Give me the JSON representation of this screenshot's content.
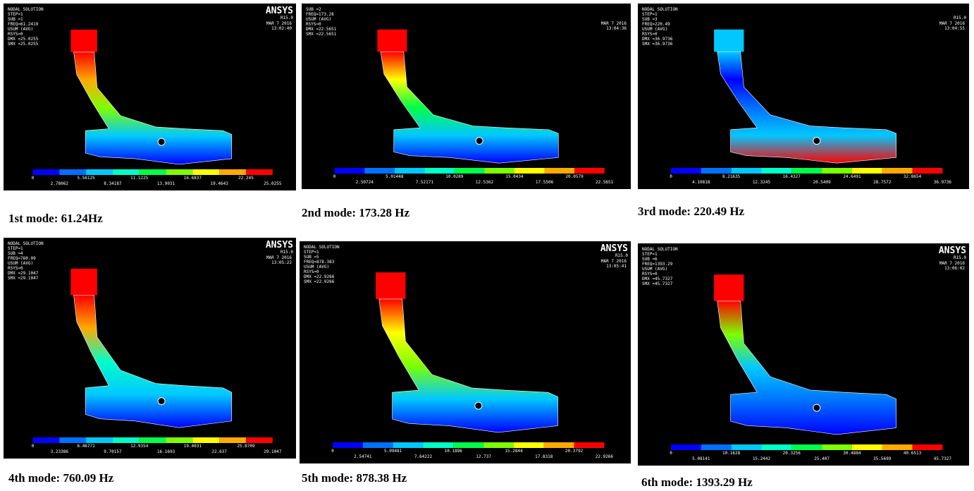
{
  "legend_colors": [
    "#0000ff",
    "#0070ff",
    "#00c8ff",
    "#00ffc8",
    "#00ff46",
    "#7dff00",
    "#ffff00",
    "#ffaa00",
    "#ff0000"
  ],
  "panels": [
    {
      "caption": "1st mode: 61.24Hz",
      "logo": "ANSYS",
      "version": "R15.0",
      "date": "MAR 7 2016",
      "time": "13:02:40",
      "info": [
        "NODAL SOLUTION",
        "STEP=1",
        "SUB =1",
        "FREQ=61.2419",
        "USUM (AVG)",
        "RSYS=0",
        "DMX =25.0255",
        "SMX =25.0255"
      ],
      "legend": [
        "0",
        "2.78062",
        "5.56125",
        "8.34187",
        "11.1225",
        "13.9031",
        "16.6837",
        "19.4643",
        "22.245",
        "25.0255"
      ]
    },
    {
      "caption": "2nd mode: 173.28 Hz",
      "date": "MAR 7 2016",
      "time": "13:04:36",
      "info": [
        "SUB =2",
        "FREQ=173.28",
        "USUM (AVG)",
        "RSYS=0",
        "DMX =22.5651",
        "SMX =22.5651"
      ],
      "legend": [
        "0",
        "2.50724",
        "5.01448",
        "7.52171",
        "10.0289",
        "12.5362",
        "15.0434",
        "17.5506",
        "20.0579",
        "22.5651"
      ]
    },
    {
      "caption": "3rd mode: 220.49 Hz",
      "version": "R15.0",
      "date": "MAR 7 2016",
      "time": "13:04:55",
      "info": [
        "NODAL SOLUTION",
        "STEP=1",
        "SUB =3",
        "FREQ=220.49",
        "USUM (AVG)",
        "RSYS=0",
        "DMX =36.9736",
        "SMX =36.9736"
      ],
      "legend": [
        "0",
        "4.10818",
        "8.21635",
        "12.3245",
        "16.4327",
        "20.5409",
        "24.6491",
        "28.7572",
        "32.8654",
        "36.9736"
      ]
    },
    {
      "caption": "4th mode: 760.09 Hz",
      "logo": "ANSYS",
      "version": "R15.0",
      "date": "MAR 7 2016",
      "time": "13:05:22",
      "info": [
        "NODAL SOLUTION",
        "STEP=1",
        "SUB =4",
        "FREQ=760.09",
        "USUM (AVG)",
        "RSYS=0",
        "DMX =29.1047",
        "SMX =29.1047"
      ],
      "legend": [
        "0",
        "3.23386",
        "6.46771",
        "9.70157",
        "12.9354",
        "16.1693",
        "19.4031",
        "22.637",
        "25.8709",
        "29.1047"
      ]
    },
    {
      "caption": "5th mode: 878.38 Hz",
      "logo": "ANSYS",
      "version": "R15.0",
      "date": "MAR 7 2016",
      "time": "13:05:41",
      "info": [
        "NODAL SOLUTION",
        "STEP=1",
        "SUB =5",
        "FREQ=878.383",
        "USUM (AVG)",
        "RSYS=0",
        "DMX =22.9266",
        "SMX =22.9266"
      ],
      "legend": [
        "0",
        "2.54741",
        "5.09481",
        "7.64222",
        "10.1896",
        "12.737",
        "15.2844",
        "17.8318",
        "20.3792",
        "22.9266"
      ]
    },
    {
      "caption": "6th mode: 1393.29 Hz",
      "logo": "ANSYS",
      "version": "R15.0",
      "date": "MAR 7 2016",
      "time": "13:06:02",
      "info": [
        "NODAL SOLUTION",
        "STEP=1",
        "SUB =6",
        "FREQ=1393.29",
        "USUM (AVG)",
        "RSYS=0",
        "DMX =45.7327",
        "SMX =45.7327"
      ],
      "legend": [
        "0",
        "5.08141",
        "10.1628",
        "15.2442",
        "20.3256",
        "25.407",
        "30.4884",
        "35.5699",
        "40.6513",
        "45.7327"
      ]
    }
  ]
}
